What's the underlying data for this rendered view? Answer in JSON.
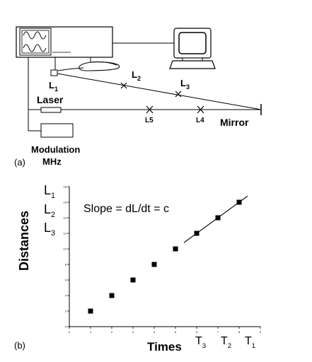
{
  "diagram": {
    "panel_label": "(a)",
    "labels": {
      "laser": "Laser",
      "mirror": "Mirror",
      "modulation_line1": "Modulation",
      "modulation_line2": "MHz",
      "L1": "L",
      "L1_sub": "1",
      "L2": "L",
      "L2_sub": "2",
      "L3": "L",
      "L3_sub": "3",
      "L4": "L4",
      "L5": "L5"
    },
    "icons": [
      "oscilloscope-icon",
      "computer-monitor-icon",
      "detector-icon",
      "laser-icon",
      "modulator-icon",
      "mirror-icon"
    ]
  },
  "chart_data": {
    "type": "scatter",
    "panel_label": "(b)",
    "xlabel": "Times",
    "ylabel": "Distances",
    "annotation": "Slope = dL/dt = c",
    "x": [
      1,
      2,
      3,
      4,
      5,
      6,
      7,
      8
    ],
    "y": [
      2,
      4,
      6,
      8,
      10,
      12,
      14,
      16
    ],
    "xlim": [
      0,
      9
    ],
    "ylim": [
      0,
      18
    ],
    "x_ticks": [
      "0",
      "1",
      "2",
      "3",
      "4",
      "5",
      "6",
      "7",
      "8",
      "9"
    ],
    "y_ticks": [
      "0",
      "2",
      "4",
      "6",
      "8",
      "10",
      "12",
      "14",
      "16",
      "18"
    ],
    "fit_line": {
      "x": [
        5.4,
        8.4
      ],
      "y": [
        10.8,
        16.8
      ]
    },
    "y_side_labels": [
      {
        "text": "L",
        "sub": "1"
      },
      {
        "text": "L",
        "sub": "2"
      },
      {
        "text": "L",
        "sub": "3"
      }
    ],
    "x_side_labels": [
      {
        "text": "T",
        "sub": "3"
      },
      {
        "text": "T",
        "sub": "2"
      },
      {
        "text": "T",
        "sub": "1"
      }
    ],
    "grid": false,
    "marker": "square",
    "color": "#000000"
  }
}
